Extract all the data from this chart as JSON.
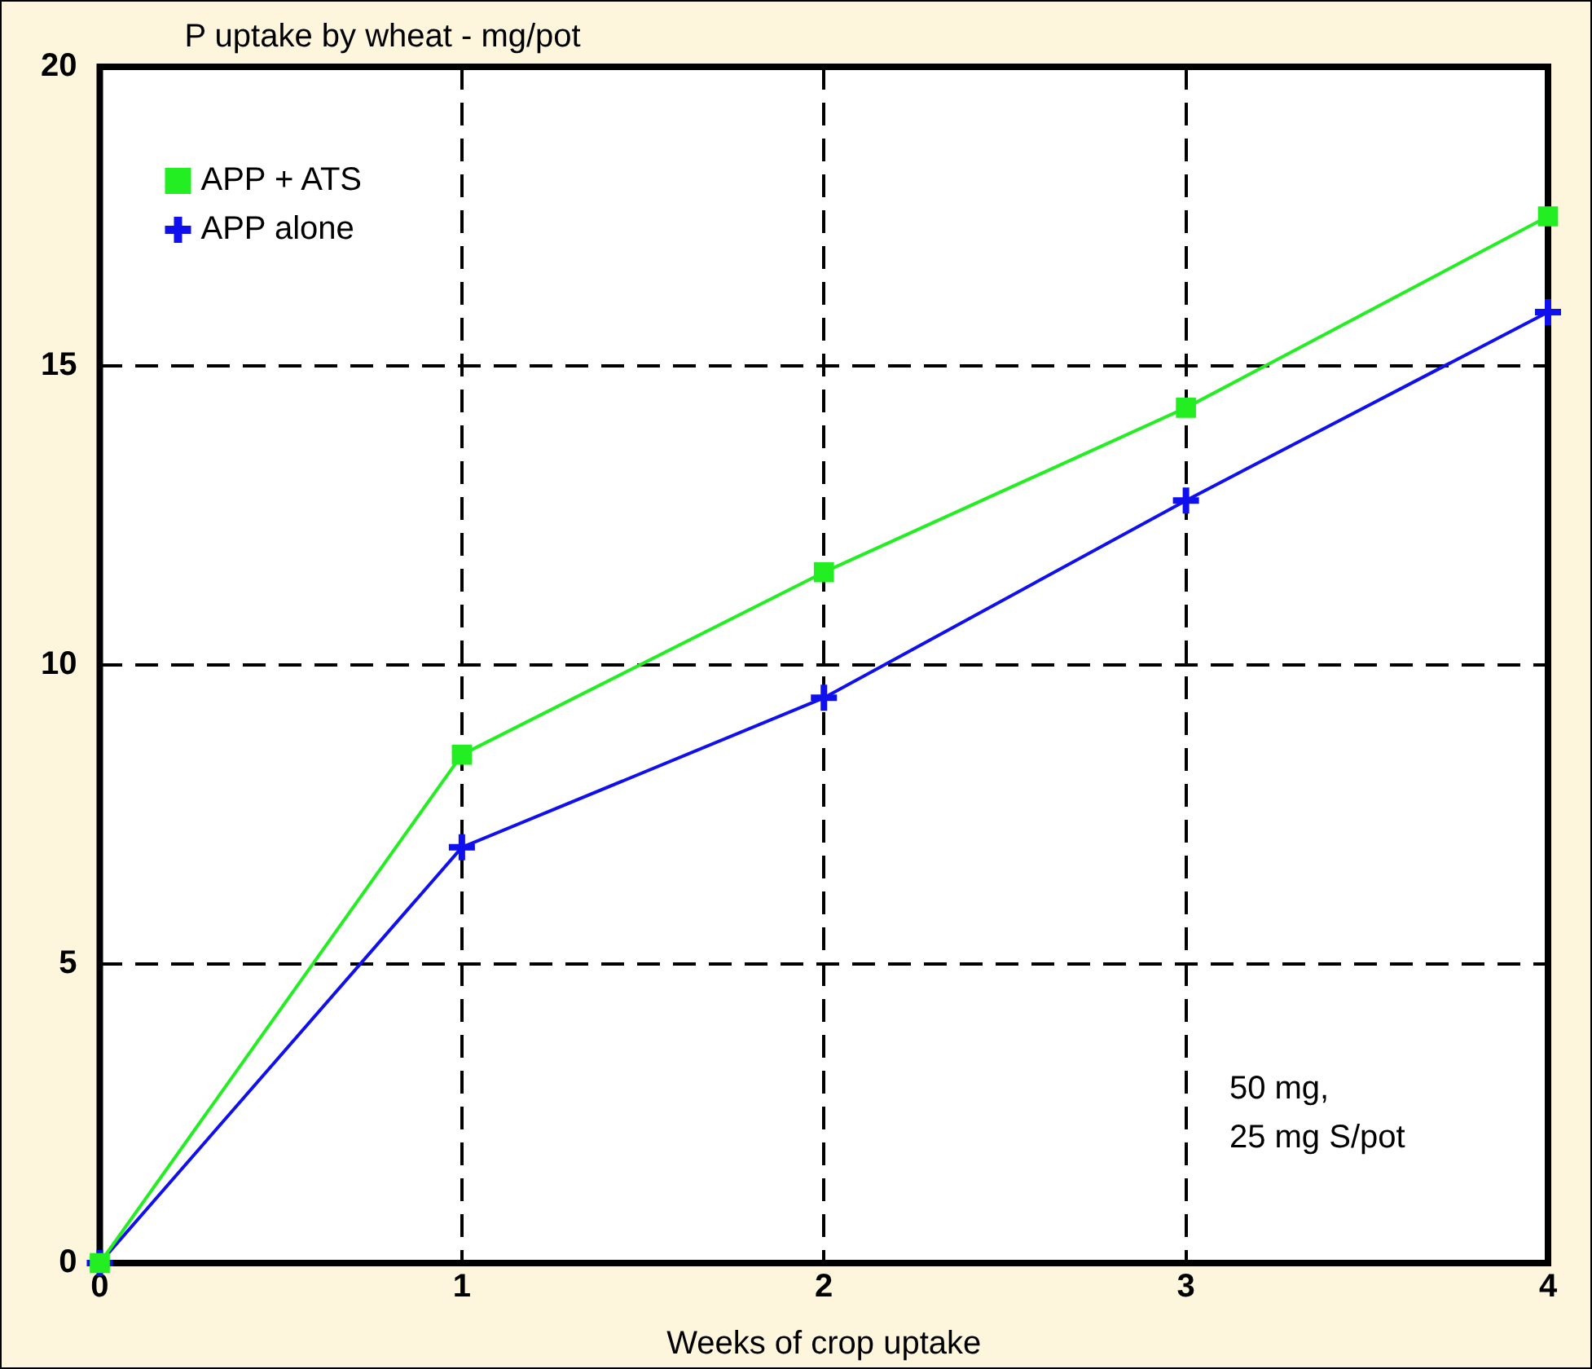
{
  "chart_data": {
    "type": "line",
    "ylabel": "P uptake by wheat - mg/pot",
    "xlabel": "Weeks of crop uptake",
    "x": [
      0,
      1,
      2,
      3,
      4
    ],
    "series": [
      {
        "name": "APP + ATS",
        "color": "#22ee22",
        "marker": "square",
        "values": [
          0,
          8.5,
          11.55,
          14.3,
          17.5
        ]
      },
      {
        "name": "APP alone",
        "color": "#1010ee",
        "marker": "cross",
        "values": [
          0,
          6.95,
          9.45,
          12.75,
          15.9
        ]
      }
    ],
    "xlim": [
      0,
      4
    ],
    "xticks": [
      0,
      1,
      2,
      3,
      4
    ],
    "ylim": [
      0,
      20
    ],
    "yticks": [
      0,
      5,
      10,
      15,
      20
    ],
    "grid": true,
    "legend": "top left",
    "annotations": [
      "50 mg,\n25 mg S/pot"
    ]
  }
}
